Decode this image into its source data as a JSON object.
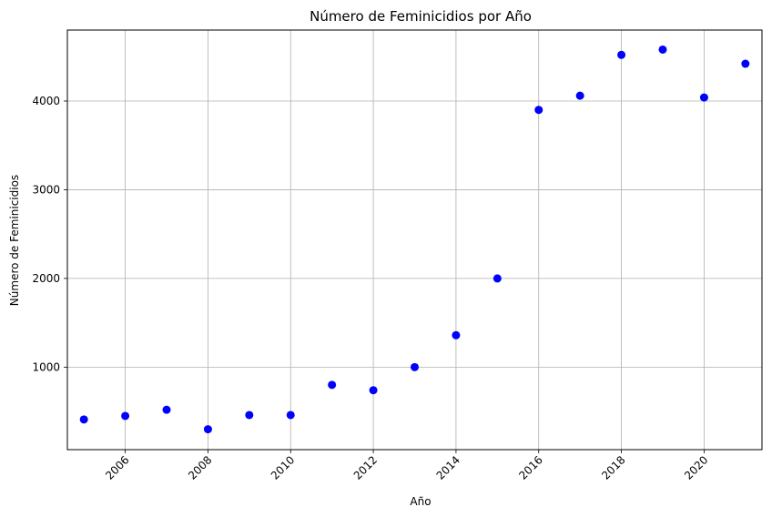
{
  "chart_data": {
    "type": "scatter",
    "title": "Número de Feminicidios por Año",
    "xlabel": "Año",
    "ylabel": "Número de Feminicidios",
    "x": [
      2005,
      2006,
      2007,
      2008,
      2009,
      2010,
      2011,
      2012,
      2013,
      2014,
      2015,
      2016,
      2017,
      2018,
      2019,
      2020,
      2021
    ],
    "y": [
      410,
      450,
      520,
      300,
      460,
      460,
      800,
      740,
      1000,
      1360,
      2000,
      3900,
      4060,
      4520,
      4580,
      4040,
      4420
    ],
    "xlim": [
      2004.6,
      2021.4
    ],
    "ylim": [
      70,
      4800
    ],
    "xticks": [
      2006,
      2008,
      2010,
      2012,
      2014,
      2016,
      2018,
      2020
    ],
    "xtick_labels": [
      "2006",
      "2008",
      "2010",
      "2012",
      "2014",
      "2016",
      "2018",
      "2020"
    ],
    "yticks": [
      1000,
      2000,
      3000,
      4000
    ],
    "ytick_labels": [
      "1000",
      "2000",
      "3000",
      "4000"
    ],
    "grid": true,
    "xtick_rotation": "45°",
    "colors": {
      "marker": "#0000ff",
      "grid": "#b0b0b0",
      "axes": "#000000"
    }
  }
}
